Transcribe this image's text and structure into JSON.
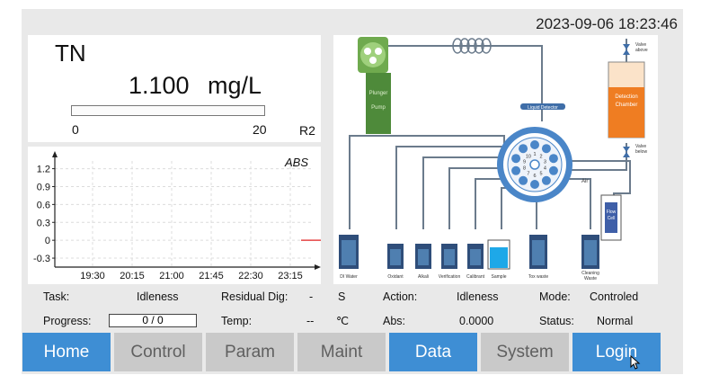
{
  "header": {
    "datetime": "2023-09-06 18:23:46"
  },
  "reading": {
    "parameter": "TN",
    "value": "1.100",
    "unit": "mg/L",
    "range_min": "0",
    "range_max": "20",
    "range_tag": "R2",
    "range_fill_fraction": 0.0
  },
  "chart_data": {
    "type": "line",
    "title": "ABS",
    "x_ticks": [
      "19:30",
      "20:15",
      "21:00",
      "21:45",
      "22:30",
      "23:15"
    ],
    "y_ticks": [
      "1.2",
      "0.9",
      "0.6",
      "0.3",
      "0",
      "-0.3"
    ],
    "ylim": [
      -0.45,
      1.45
    ],
    "grid": true,
    "series": [
      {
        "values": [
          0,
          0
        ],
        "x_range": [
          "23:30",
          "23:45"
        ],
        "color": "#e02020"
      }
    ]
  },
  "diagram": {
    "labels": {
      "plunger": "Plunger",
      "pump": "Pump",
      "liquid_detector": "Liquid Detector",
      "detection": "Detection",
      "chamber": "Chamber",
      "valve_above_1": "Valve",
      "valve_above_2": "above",
      "valve_below_1": "Valve",
      "valve_below_2": "below",
      "air": "Air",
      "flow": "Flow",
      "cell": "Cell",
      "di_water": "DI Water",
      "oxidant": "Oxidant",
      "alkali": "Alkali",
      "verification": "Verification",
      "calibrant": "Calibrant",
      "sample": "Sample",
      "tox_waste": "Tox waste",
      "cleaning": "Cleaning",
      "waste": "Waste"
    },
    "valve_ports": [
      "1",
      "2",
      "3",
      "4",
      "5",
      "6",
      "7",
      "8",
      "9",
      "10"
    ]
  },
  "status": {
    "task_label": "Task:",
    "task_value": "Idleness",
    "residual_label": "Residual Dig:",
    "residual_value": "-",
    "residual_unit": "S",
    "action_label": "Action:",
    "action_value": "Idleness",
    "mode_label": "Mode:",
    "mode_value": "Controled",
    "progress_label": "Progress:",
    "progress_value": "0  /  0",
    "temp_label": "Temp:",
    "temp_value": "--",
    "temp_unit": "℃",
    "abs_label": "Abs:",
    "abs_value": "0.0000",
    "status_label": "Status:",
    "status_value": "Normal"
  },
  "nav": {
    "home": "Home",
    "control": "Control",
    "param": "Param",
    "maint": "Maint",
    "data": "Data",
    "system": "System",
    "login": "Login"
  },
  "colors": {
    "nav_active": "#3e8ed4",
    "nav_inactive": "#c9c9c9",
    "pump_green": "#4e8a3a",
    "chamber_orange": "#ef7d22",
    "valve_blue": "#4a86c8"
  }
}
